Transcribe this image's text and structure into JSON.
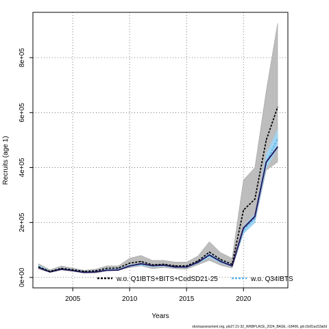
{
  "chart_data": {
    "type": "line",
    "xlabel": "Years",
    "ylabel": "Recruits (age 1)",
    "x": [
      2002,
      2003,
      2004,
      2005,
      2006,
      2007,
      2008,
      2009,
      2010,
      2011,
      2012,
      2013,
      2014,
      2015,
      2016,
      2017,
      2018,
      2019,
      2020,
      2021,
      2022,
      2023
    ],
    "x_ticks": [
      2005,
      2010,
      2015,
      2020
    ],
    "y_ticks": [
      0,
      200000,
      400000,
      600000,
      800000
    ],
    "y_tick_labels": [
      "0e+00",
      "2e+05",
      "4e+05",
      "6e+05",
      "8e+05"
    ],
    "xlim": [
      2001.5,
      2023.9
    ],
    "ylim": [
      -38000,
      965000
    ],
    "grid": true,
    "legend_position": "bottom",
    "series": [
      {
        "name": "w.o. Q1IBTS+BITS+CodSD21-25",
        "color": "#000000",
        "style": "dashed",
        "values": [
          38000,
          22000,
          33000,
          28000,
          22000,
          24000,
          33000,
          34000,
          52000,
          58000,
          46000,
          48000,
          42000,
          42000,
          60000,
          92000,
          65000,
          48000,
          245000,
          285000,
          500000,
          620000
        ],
        "band_low": [
          30000,
          18000,
          27000,
          22000,
          16000,
          16000,
          24000,
          26000,
          36000,
          42000,
          32000,
          36000,
          32000,
          30000,
          46000,
          62000,
          44000,
          34000,
          160000,
          200000,
          390000,
          420000
        ],
        "band_high": [
          50000,
          28000,
          42000,
          34000,
          26000,
          30000,
          42000,
          42000,
          70000,
          80000,
          62000,
          62000,
          56000,
          56000,
          78000,
          130000,
          90000,
          70000,
          355000,
          400000,
          680000,
          925000
        ]
      },
      {
        "name": "w.o. Q34IBTS",
        "color": "#56b4e9",
        "style": "dashed",
        "values": [
          40000,
          21000,
          32000,
          26000,
          19000,
          21000,
          27000,
          28000,
          42000,
          48000,
          42000,
          44000,
          38000,
          38000,
          55000,
          80000,
          58000,
          42000,
          172000,
          215000,
          420000,
          505000
        ],
        "band_low": [
          36000,
          18000,
          29000,
          23000,
          16000,
          18000,
          24000,
          25000,
          38000,
          43000,
          38000,
          40000,
          34000,
          34000,
          50000,
          72000,
          52000,
          38000,
          158000,
          198000,
          395000,
          470000
        ],
        "band_high": [
          45000,
          24000,
          36000,
          30000,
          22000,
          24000,
          31000,
          32000,
          47000,
          53000,
          47000,
          49000,
          42000,
          43000,
          61000,
          88000,
          65000,
          47000,
          186000,
          232000,
          450000,
          540000
        ]
      },
      {
        "name": "",
        "color": "#2a1b5e",
        "style": "solid",
        "values": [
          36000,
          20000,
          30000,
          25000,
          18000,
          20000,
          26000,
          27000,
          42000,
          50000,
          43000,
          45000,
          38000,
          38000,
          55000,
          82000,
          58000,
          42000,
          180000,
          222000,
          420000,
          475000
        ]
      }
    ]
  },
  "footnote": "stockassessment.org, pls27.21-32_WKBPLACE_2024_BASE, r18406, git:c9c81ac53a0d"
}
